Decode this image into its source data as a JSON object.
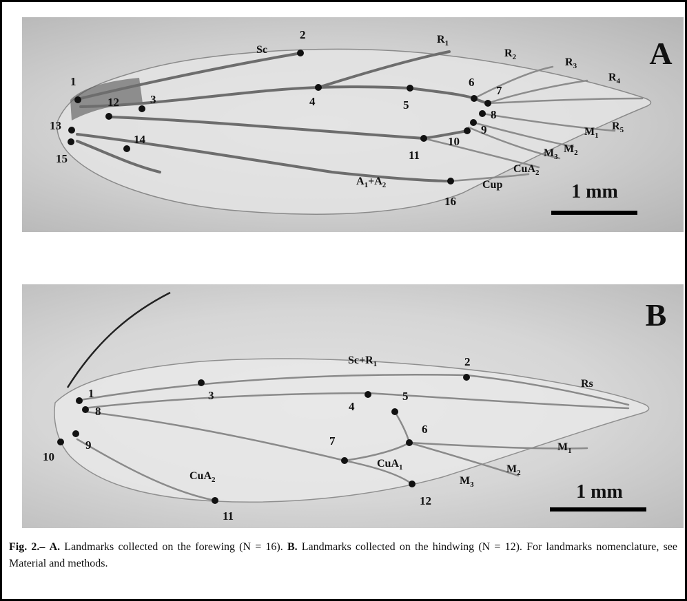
{
  "panelA": {
    "letter": "A",
    "scale": "1 mm",
    "landmarks": [
      "1",
      "2",
      "3",
      "4",
      "5",
      "6",
      "7",
      "8",
      "9",
      "10",
      "11",
      "12",
      "13",
      "14",
      "15",
      "16"
    ],
    "veins": {
      "sc": "Sc",
      "r1": {
        "base": "R",
        "sub": "1"
      },
      "r2": {
        "base": "R",
        "sub": "2"
      },
      "r3": {
        "base": "R",
        "sub": "3"
      },
      "r4": {
        "base": "R",
        "sub": "4"
      },
      "r5": {
        "base": "R",
        "sub": "5"
      },
      "m1": {
        "base": "M",
        "sub": "1"
      },
      "m2": {
        "base": "M",
        "sub": "2"
      },
      "m3": {
        "base": "M",
        "sub": "3"
      },
      "cua2": {
        "base": "CuA",
        "sub": "2"
      },
      "cup": "Cup",
      "a1a2": {
        "base1": "A",
        "sub1": "1",
        "plus": "+",
        "base2": "A",
        "sub2": "2"
      }
    }
  },
  "panelB": {
    "letter": "B",
    "scale": "1 mm",
    "landmarks": [
      "1",
      "2",
      "3",
      "4",
      "5",
      "6",
      "7",
      "8",
      "9",
      "10",
      "11",
      "12"
    ],
    "veins": {
      "scr1": {
        "base": "Sc+R",
        "sub": "1"
      },
      "rs": "Rs",
      "m1": {
        "base": "M",
        "sub": "1"
      },
      "m2": {
        "base": "M",
        "sub": "2"
      },
      "m3": {
        "base": "M",
        "sub": "3"
      },
      "cua1": {
        "base": "CuA",
        "sub": "1"
      },
      "cua2": {
        "base": "CuA",
        "sub": "2"
      }
    }
  },
  "caption": {
    "fig": "Fig. 2.–",
    "a_label": "A.",
    "a_text": "Landmarks collected on the forewing (N = 16).",
    "b_label": "B.",
    "b_text": "Landmarks collected on the hindwing (N = 12).",
    "note": "For landmarks nomenclature, see Material and methods."
  }
}
